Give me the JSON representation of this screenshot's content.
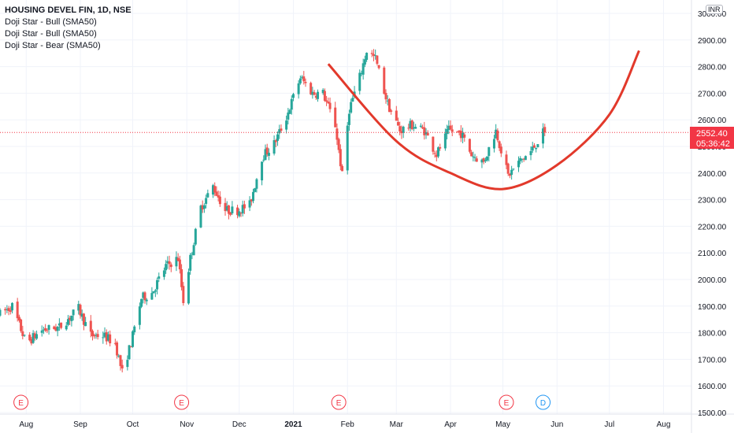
{
  "header": {
    "symbol_title": "HOUSING DEVEL FIN, 1D, NSE",
    "indicators": [
      "Doji Star - Bull (SMA50)",
      "Doji Star - Bull (SMA50)",
      "Doji Star - Bear (SMA50)"
    ],
    "currency_badge": "INR"
  },
  "price_marker": {
    "price": "2552.40",
    "countdown": "05:36:42"
  },
  "event_markers": [
    {
      "label": "E",
      "date": "2020-07-29",
      "color": "#f23645"
    },
    {
      "label": "E",
      "date": "2020-10-29",
      "color": "#f23645"
    },
    {
      "label": "E",
      "date": "2021-01-27",
      "color": "#f23645"
    },
    {
      "label": "E",
      "date": "2021-05-03",
      "color": "#f23645"
    },
    {
      "label": "D",
      "date": "2021-05-24",
      "color": "#2196f3"
    }
  ],
  "colors": {
    "up": "#26a69a",
    "down": "#ef5350",
    "curve": "#e2392b",
    "price_line": "#f23645"
  },
  "chart_data": {
    "type": "candlestick",
    "x_range": [
      "2020-07-17",
      "2021-08-17"
    ],
    "y_range": [
      1500,
      3000
    ],
    "y_ticks": [
      "1500.00",
      "1600.00",
      "1700.00",
      "1800.00",
      "1900.00",
      "2000.00",
      "2100.00",
      "2200.00",
      "2300.00",
      "2400.00",
      "2500.00",
      "2600.00",
      "2700.00",
      "2800.00",
      "2900.00",
      "3000.00"
    ],
    "x_ticks": [
      {
        "label": "Aug",
        "date": "2020-08-01"
      },
      {
        "label": "Sep",
        "date": "2020-09-01"
      },
      {
        "label": "Oct",
        "date": "2020-10-01"
      },
      {
        "label": "Nov",
        "date": "2020-11-01"
      },
      {
        "label": "Dec",
        "date": "2020-12-01"
      },
      {
        "label": "2021",
        "date": "2021-01-01",
        "bold": true
      },
      {
        "label": "Feb",
        "date": "2021-02-01"
      },
      {
        "label": "Mar",
        "date": "2021-03-01"
      },
      {
        "label": "Apr",
        "date": "2021-04-01"
      },
      {
        "label": "May",
        "date": "2021-05-01"
      },
      {
        "label": "Jun",
        "date": "2021-06-01"
      },
      {
        "label": "Jul",
        "date": "2021-07-01"
      },
      {
        "label": "Aug",
        "date": "2021-08-01"
      }
    ],
    "last_price": 2552.4,
    "anchors": [
      [
        "2020-07-17",
        1870
      ],
      [
        "2020-07-24",
        1900
      ],
      [
        "2020-08-01",
        1760
      ],
      [
        "2020-08-10",
        1810
      ],
      [
        "2020-08-20",
        1820
      ],
      [
        "2020-08-31",
        1890
      ],
      [
        "2020-09-07",
        1790
      ],
      [
        "2020-09-14",
        1790
      ],
      [
        "2020-09-21",
        1760
      ],
      [
        "2020-09-25",
        1650
      ],
      [
        "2020-09-30",
        1760
      ],
      [
        "2020-10-06",
        1930
      ],
      [
        "2020-10-12",
        1950
      ],
      [
        "2020-10-20",
        2050
      ],
      [
        "2020-10-27",
        2080
      ],
      [
        "2020-10-30",
        1920
      ],
      [
        "2020-11-03",
        2080
      ],
      [
        "2020-11-09",
        2270
      ],
      [
        "2020-11-16",
        2350
      ],
      [
        "2020-11-23",
        2260
      ],
      [
        "2020-11-30",
        2260
      ],
      [
        "2020-12-07",
        2280
      ],
      [
        "2020-12-14",
        2460
      ],
      [
        "2020-12-21",
        2510
      ],
      [
        "2020-12-28",
        2610
      ],
      [
        "2021-01-05",
        2760
      ],
      [
        "2021-01-12",
        2700
      ],
      [
        "2021-01-18",
        2700
      ],
      [
        "2021-01-25",
        2580
      ],
      [
        "2021-01-29",
        2390
      ],
      [
        "2021-02-02",
        2640
      ],
      [
        "2021-02-08",
        2760
      ],
      [
        "2021-02-12",
        2860
      ],
      [
        "2021-02-17",
        2830
      ],
      [
        "2021-02-24",
        2660
      ],
      [
        "2021-03-03",
        2560
      ],
      [
        "2021-03-10",
        2580
      ],
      [
        "2021-03-17",
        2560
      ],
      [
        "2021-03-24",
        2470
      ],
      [
        "2021-03-31",
        2560
      ],
      [
        "2021-04-07",
        2550
      ],
      [
        "2021-04-13",
        2470
      ],
      [
        "2021-04-20",
        2440
      ],
      [
        "2021-04-27",
        2560
      ],
      [
        "2021-05-04",
        2390
      ],
      [
        "2021-05-10",
        2440
      ],
      [
        "2021-05-17",
        2480
      ],
      [
        "2021-05-25",
        2560
      ]
    ],
    "cup_curve": [
      [
        "2021-01-21",
        2810
      ],
      [
        "2021-03-01",
        2520
      ],
      [
        "2021-04-01",
        2400
      ],
      [
        "2021-05-01",
        2340
      ],
      [
        "2021-06-01",
        2430
      ],
      [
        "2021-07-01",
        2620
      ],
      [
        "2021-07-18",
        2860
      ]
    ]
  }
}
